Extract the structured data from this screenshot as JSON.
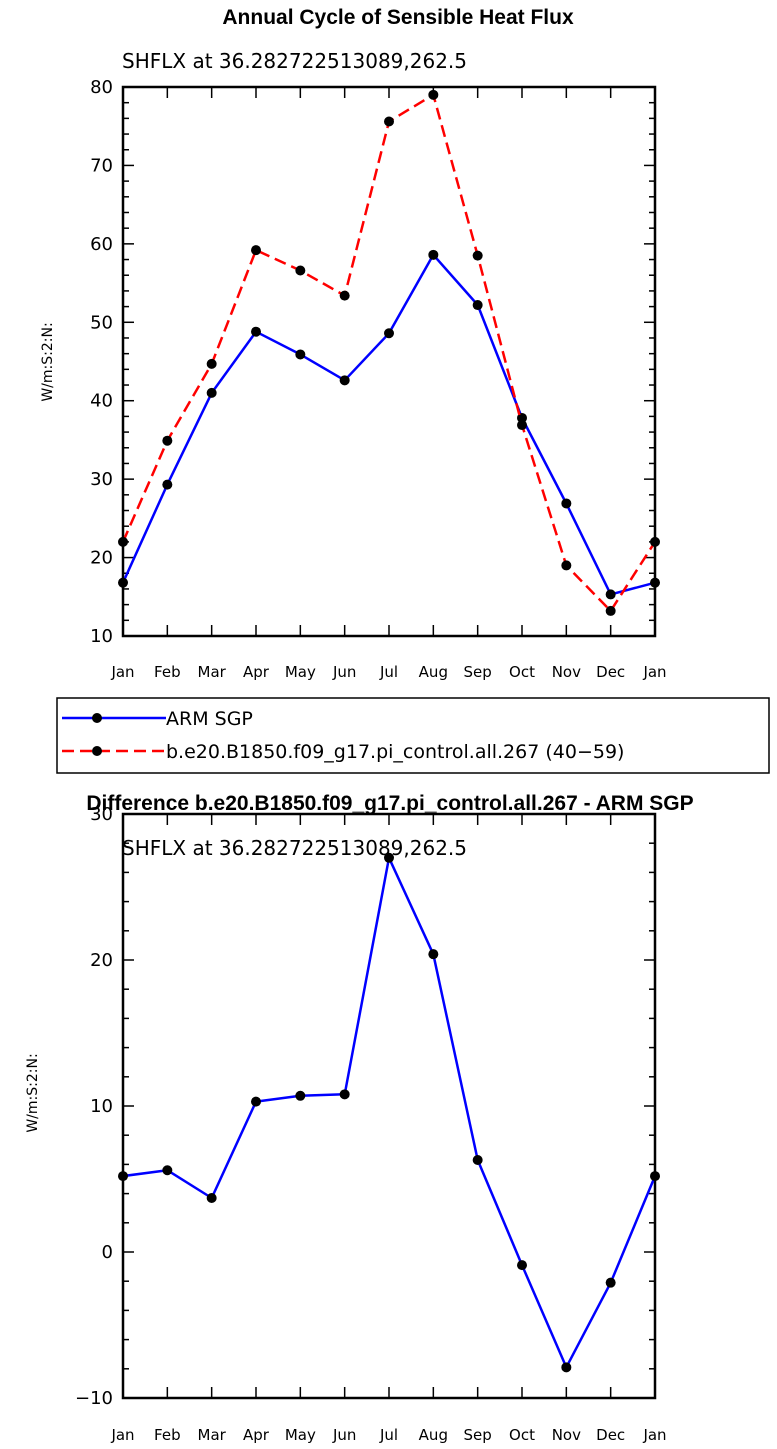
{
  "chart_data": [
    {
      "type": "line",
      "title": "Annual Cycle of Sensible Heat Flux",
      "subtitle": "SHFLX at 36.282722513089,262.5",
      "xlabel": "",
      "ylabel": "W/m:S:2:N:",
      "categories": [
        "Jan",
        "Feb",
        "Mar",
        "Apr",
        "May",
        "Jun",
        "Jul",
        "Aug",
        "Sep",
        "Oct",
        "Nov",
        "Dec",
        "Jan"
      ],
      "ylim": [
        10,
        80
      ],
      "yticks": [
        10,
        20,
        30,
        40,
        50,
        60,
        70,
        80
      ],
      "grid": false,
      "legend_position": "below",
      "series": [
        {
          "name": "ARM SGP",
          "color": "#0000ff",
          "dash": "solid",
          "marker": "filled-circle",
          "values": [
            16.8,
            29.3,
            41.0,
            48.8,
            45.9,
            42.6,
            48.6,
            58.6,
            52.2,
            37.8,
            26.9,
            15.3,
            16.8
          ]
        },
        {
          "name": "b.e20.B1850.f09_g17.pi_control.all.267 (40−59)",
          "color": "#ff0000",
          "dash": "dashed",
          "marker": "filled-circle",
          "values": [
            22.0,
            34.9,
            44.7,
            59.2,
            56.6,
            53.4,
            75.6,
            79.0,
            58.5,
            36.9,
            19.0,
            13.2,
            22.0
          ]
        }
      ]
    },
    {
      "type": "line",
      "title": "Difference b.e20.B1850.f09_g17.pi_control.all.267 - ARM SGP",
      "subtitle": "SHFLX at 36.282722513089,262.5",
      "xlabel": "",
      "ylabel": "W/m:S:2:N:",
      "categories": [
        "Jan",
        "Feb",
        "Mar",
        "Apr",
        "May",
        "Jun",
        "Jul",
        "Aug",
        "Sep",
        "Oct",
        "Nov",
        "Dec",
        "Jan"
      ],
      "ylim": [
        -10,
        30
      ],
      "yticks": [
        -10,
        0,
        10,
        20,
        30
      ],
      "grid": false,
      "series": [
        {
          "color": "#0000ff",
          "dash": "solid",
          "marker": "filled-circle",
          "values": [
            5.2,
            5.6,
            3.7,
            10.3,
            10.7,
            10.8,
            27.0,
            20.4,
            6.3,
            -0.9,
            -7.9,
            -2.1,
            5.2
          ]
        }
      ]
    }
  ]
}
